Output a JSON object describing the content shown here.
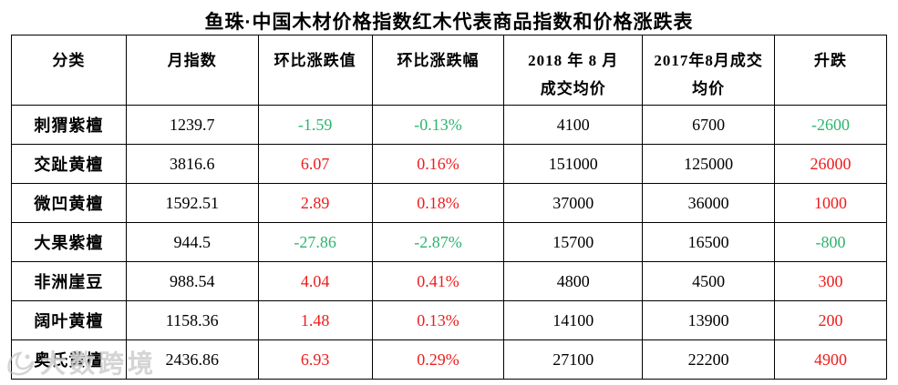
{
  "title": "鱼珠·中国木材价格指数红木代表商品指数和价格涨跌表",
  "colors": {
    "up_red": "#ee1c1c",
    "down_green": "#2db46e",
    "text_black": "#000000",
    "border": "#000000",
    "watermark_gray": "#bababa"
  },
  "watermark": {
    "logo": "swoosh-logo-icon",
    "text": "大数跨境"
  },
  "table": {
    "headers": [
      {
        "line1": "分类"
      },
      {
        "line1": "月指数"
      },
      {
        "line1": "环比涨跌值"
      },
      {
        "line1": "环比涨跌幅"
      },
      {
        "line1": "2018 年 8 月",
        "line2": "成交均价"
      },
      {
        "line1": "2017年8月成交",
        "line2": "均价"
      },
      {
        "line1": "升跌"
      }
    ],
    "rows": [
      {
        "category": "刺猬紫檀",
        "index": "1239.7",
        "change_value": "-1.59",
        "change_pct": "-0.13%",
        "price_2018": "4100",
        "price_2017": "6700",
        "diff": "-2600"
      },
      {
        "category": "交趾黄檀",
        "index": "3816.6",
        "change_value": "6.07",
        "change_pct": "0.16%",
        "price_2018": "151000",
        "price_2017": "125000",
        "diff": "26000"
      },
      {
        "category": "微凹黄檀",
        "index": "1592.51",
        "change_value": "2.89",
        "change_pct": "0.18%",
        "price_2018": "37000",
        "price_2017": "36000",
        "diff": "1000"
      },
      {
        "category": "大果紫檀",
        "index": "944.5",
        "change_value": "-27.86",
        "change_pct": "-2.87%",
        "price_2018": "15700",
        "price_2017": "16500",
        "diff": "-800"
      },
      {
        "category": "非洲崖豆",
        "index": "988.54",
        "change_value": "4.04",
        "change_pct": "0.41%",
        "price_2018": "4800",
        "price_2017": "4500",
        "diff": "300"
      },
      {
        "category": "阔叶黄檀",
        "index": "1158.36",
        "change_value": "1.48",
        "change_pct": "0.13%",
        "price_2018": "14100",
        "price_2017": "13900",
        "diff": "200"
      },
      {
        "category": "奥氏黄檀",
        "index": "2436.86",
        "change_value": "6.93",
        "change_pct": "0.29%",
        "price_2018": "27100",
        "price_2017": "22200",
        "diff": "4900"
      }
    ]
  }
}
